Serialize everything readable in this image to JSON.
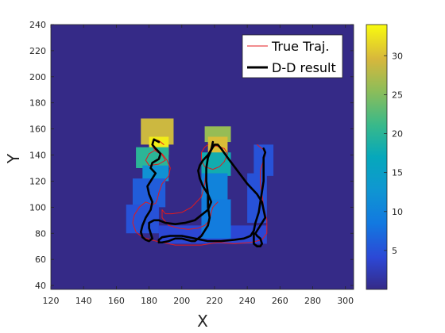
{
  "chart_data": {
    "type": "heatmap",
    "title": "",
    "xlabel": "X",
    "ylabel": "Y",
    "xlim": [
      120,
      305
    ],
    "ylim": [
      37,
      240
    ],
    "xticks": [
      "120",
      "140",
      "160",
      "180",
      "200",
      "220",
      "240",
      "260",
      "280",
      "300"
    ],
    "yticks": [
      "40",
      "60",
      "80",
      "100",
      "120",
      "140",
      "160",
      "180",
      "200",
      "220",
      "240"
    ],
    "grid": false,
    "legend": {
      "placement": "top-right",
      "entries": [
        "True Traj.",
        "D-D result"
      ]
    },
    "colorbar": {
      "range": [
        0,
        34
      ],
      "ticks": [
        "5",
        "10",
        "15",
        "20",
        "25",
        "30"
      ]
    },
    "background_value": 1,
    "heat_cells": [
      {
        "x": 175,
        "y": 148,
        "w": 20,
        "h": 20,
        "v": 29
      },
      {
        "x": 180,
        "y": 140,
        "w": 12,
        "h": 14,
        "v": 33
      },
      {
        "x": 172,
        "y": 130,
        "w": 20,
        "h": 16,
        "v": 20
      },
      {
        "x": 176,
        "y": 120,
        "w": 16,
        "h": 12,
        "v": 12
      },
      {
        "x": 170,
        "y": 100,
        "w": 20,
        "h": 22,
        "v": 6
      },
      {
        "x": 166,
        "y": 80,
        "w": 20,
        "h": 22,
        "v": 5
      },
      {
        "x": 186,
        "y": 72,
        "w": 66,
        "h": 14,
        "v": 4
      },
      {
        "x": 214,
        "y": 150,
        "w": 16,
        "h": 12,
        "v": 26
      },
      {
        "x": 216,
        "y": 140,
        "w": 12,
        "h": 14,
        "v": 30
      },
      {
        "x": 212,
        "y": 124,
        "w": 18,
        "h": 18,
        "v": 18
      },
      {
        "x": 212,
        "y": 104,
        "w": 16,
        "h": 22,
        "v": 10
      },
      {
        "x": 212,
        "y": 76,
        "w": 18,
        "h": 30,
        "v": 9
      },
      {
        "x": 244,
        "y": 124,
        "w": 12,
        "h": 24,
        "v": 5
      },
      {
        "x": 240,
        "y": 88,
        "w": 12,
        "h": 38,
        "v": 5
      }
    ],
    "series": [
      {
        "name": "True Traj.",
        "color": "#e41a1c",
        "x": [
          189,
          186,
          183,
          182,
          182,
          184,
          188,
          190,
          186,
          180,
          178,
          180,
          184,
          188,
          191,
          193,
          192,
          188,
          186,
          185,
          184,
          182,
          178,
          174,
          171,
          170,
          172,
          176,
          181,
          188,
          196,
          204,
          212,
          222,
          232,
          242,
          249,
          252,
          252,
          250,
          249,
          248,
          248,
          250,
          251,
          250,
          248,
          246
        ],
        "y": [
          148,
          151,
          152,
          150,
          147,
          143,
          140,
          136,
          133,
          132,
          136,
          141,
          144,
          141,
          136,
          130,
          124,
          118,
          111,
          106,
          103,
          102,
          104,
          100,
          94,
          88,
          81,
          77,
          75,
          73,
          71,
          71,
          71,
          73,
          72,
          73,
          75,
          80,
          90,
          100,
          110,
          118,
          128,
          136,
          140,
          144,
          146,
          148
        ]
      },
      {
        "name": "True Traj. (right arc)",
        "color": "#e41a1c",
        "x": [
          216,
          214,
          212,
          212,
          214,
          219,
          223,
          226,
          228,
          226,
          221,
          218,
          216,
          215,
          214,
          212,
          206,
          200,
          194,
          190,
          188,
          188,
          192,
          198,
          204,
          210,
          214,
          217,
          218,
          219,
          222
        ],
        "y": [
          148,
          146,
          142,
          136,
          131,
          129,
          131,
          135,
          141,
          145,
          147,
          146,
          140,
          130,
          118,
          108,
          100,
          96,
          95,
          95,
          98,
          92,
          86,
          84,
          83,
          84,
          86,
          90,
          96,
          100,
          104
        ]
      },
      {
        "name": "D-D result",
        "color": "#000000",
        "x": [
          186,
          183,
          182,
          184,
          187,
          186,
          182,
          181,
          184,
          182,
          179,
          180,
          182,
          181,
          178,
          176,
          175,
          176,
          178,
          180,
          182,
          181,
          180,
          180,
          183,
          186,
          190,
          196,
          202,
          208,
          212,
          216,
          218,
          216,
          213,
          211,
          210,
          211,
          213,
          216,
          218,
          220,
          222,
          224,
          228,
          234,
          240,
          246,
          249,
          250,
          251,
          248,
          246,
          245,
          246,
          248,
          249,
          248,
          246,
          244,
          244
        ],
        "y": [
          150,
          152,
          148,
          145,
          141,
          137,
          134,
          130,
          126,
          122,
          116,
          110,
          104,
          98,
          92,
          86,
          81,
          77,
          75,
          74,
          76,
          80,
          84,
          88,
          90,
          90,
          88,
          87,
          88,
          90,
          94,
          98,
          104,
          110,
          116,
          122,
          128,
          132,
          136,
          140,
          144,
          148,
          148,
          145,
          138,
          128,
          118,
          110,
          104,
          98,
          92,
          86,
          82,
          80,
          78,
          76,
          72,
          70,
          70,
          72,
          80
        ]
      },
      {
        "name": "D-D result (right loop)",
        "color": "#000000",
        "x": [
          219,
          218,
          216,
          215,
          215,
          216,
          216,
          217,
          216,
          214,
          212,
          210,
          208,
          206,
          203,
          200,
          196,
          192,
          188,
          186,
          186,
          188,
          193,
          200,
          208,
          216,
          224,
          232,
          238,
          242,
          244,
          245,
          247,
          248,
          249,
          250,
          250,
          250,
          250,
          251,
          250
        ],
        "y": [
          150,
          144,
          138,
          130,
          120,
          110,
          100,
          92,
          86,
          82,
          78,
          76,
          74,
          74,
          75,
          76,
          76,
          74,
          73,
          73,
          75,
          77,
          78,
          78,
          76,
          74,
          74,
          75,
          76,
          78,
          82,
          88,
          96,
          104,
          112,
          120,
          128,
          134,
          138,
          142,
          145
        ]
      }
    ]
  }
}
